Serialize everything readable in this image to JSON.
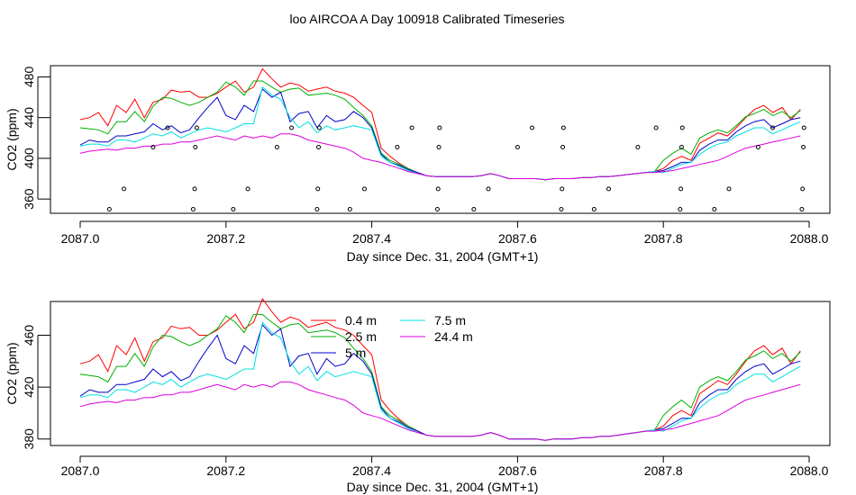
{
  "page_title": "loo AIRCOA A  Day 100918  Calibrated Timeseries",
  "chart_data": [
    {
      "type": "line",
      "panel": "top",
      "xlabel": "Day since Dec. 31, 2004 (GMT+1)",
      "ylabel": "CO2 (ppm)",
      "xlim": [
        2087.0,
        2088.0
      ],
      "ylim": [
        346,
        491
      ],
      "xticks": [
        "2087.0",
        "2087.2",
        "2087.4",
        "2087.6",
        "2087.8",
        "2088.0"
      ],
      "yticks": [
        "360",
        "400",
        "440",
        "480"
      ],
      "x": [
        2087.0,
        2087.013,
        2087.025,
        2087.038,
        2087.05,
        2087.063,
        2087.075,
        2087.088,
        2087.1,
        2087.113,
        2087.125,
        2087.138,
        2087.15,
        2087.163,
        2087.175,
        2087.188,
        2087.2,
        2087.213,
        2087.225,
        2087.238,
        2087.25,
        2087.263,
        2087.275,
        2087.288,
        2087.3,
        2087.313,
        2087.325,
        2087.338,
        2087.35,
        2087.363,
        2087.375,
        2087.388,
        2087.4,
        2087.413,
        2087.425,
        2087.438,
        2087.45,
        2087.463,
        2087.475,
        2087.488,
        2087.5,
        2087.513,
        2087.525,
        2087.538,
        2087.55,
        2087.563,
        2087.575,
        2087.588,
        2087.6,
        2087.613,
        2087.625,
        2087.638,
        2087.65,
        2087.663,
        2087.675,
        2087.688,
        2087.7,
        2087.713,
        2087.725,
        2087.738,
        2087.75,
        2087.763,
        2087.775,
        2087.788,
        2087.8,
        2087.813,
        2087.825,
        2087.838,
        2087.85,
        2087.863,
        2087.875,
        2087.888,
        2087.9,
        2087.913,
        2087.925,
        2087.938,
        2087.95,
        2087.963,
        2087.975,
        2087.988
      ],
      "series": [
        {
          "name": "0.4 m",
          "color": "#ff0000",
          "values": [
            438,
            440,
            445,
            432,
            452,
            445,
            458,
            440,
            455,
            458,
            467,
            465,
            466,
            460,
            460,
            464,
            470,
            476,
            465,
            470,
            488,
            478,
            470,
            474,
            472,
            466,
            468,
            470,
            466,
            464,
            460,
            452,
            445,
            410,
            402,
            395,
            390,
            386,
            383,
            382,
            382,
            382,
            382,
            382,
            383,
            385,
            383,
            380,
            380,
            380,
            380,
            379,
            380,
            380,
            380,
            381,
            381,
            382,
            382,
            383,
            384,
            385,
            386,
            387,
            390,
            398,
            402,
            398,
            415,
            420,
            425,
            422,
            430,
            440,
            448,
            452,
            445,
            450,
            438,
            448
          ]
        },
        {
          "name": "2.5 m",
          "color": "#00b000",
          "values": [
            430,
            429,
            428,
            424,
            436,
            436,
            446,
            436,
            451,
            460,
            459,
            455,
            452,
            455,
            460,
            465,
            475,
            470,
            462,
            476,
            476,
            470,
            465,
            468,
            469,
            462,
            463,
            464,
            462,
            458,
            450,
            442,
            432,
            405,
            398,
            394,
            390,
            386,
            383,
            382,
            382,
            382,
            382,
            382,
            383,
            385,
            383,
            380,
            380,
            380,
            380,
            379,
            380,
            380,
            380,
            381,
            381,
            382,
            382,
            383,
            384,
            385,
            386,
            387,
            398,
            405,
            410,
            404,
            420,
            425,
            428,
            425,
            432,
            441,
            444,
            448,
            442,
            446,
            440,
            447
          ]
        },
        {
          "name": "5 m",
          "color": "#0000cc",
          "values": [
            413,
            418,
            416,
            416,
            422,
            422,
            424,
            426,
            434,
            428,
            432,
            425,
            428,
            440,
            450,
            460,
            442,
            438,
            452,
            446,
            468,
            460,
            465,
            436,
            444,
            446,
            430,
            442,
            436,
            438,
            446,
            440,
            430,
            404,
            396,
            393,
            389,
            386,
            383,
            382,
            382,
            382,
            382,
            382,
            383,
            385,
            383,
            380,
            380,
            380,
            380,
            379,
            380,
            380,
            380,
            381,
            381,
            382,
            382,
            383,
            384,
            385,
            386,
            387,
            388,
            392,
            396,
            396,
            408,
            414,
            418,
            418,
            426,
            432,
            436,
            438,
            430,
            434,
            438,
            440
          ]
        },
        {
          "name": "7.5 m",
          "color": "#00e0e0",
          "values": [
            412,
            414,
            414,
            412,
            418,
            418,
            416,
            420,
            424,
            422,
            426,
            420,
            424,
            428,
            430,
            428,
            426,
            430,
            434,
            434,
            470,
            462,
            458,
            440,
            430,
            436,
            425,
            432,
            428,
            430,
            432,
            430,
            428,
            402,
            396,
            392,
            388,
            385,
            383,
            382,
            382,
            382,
            382,
            382,
            383,
            385,
            383,
            380,
            380,
            380,
            380,
            379,
            380,
            380,
            380,
            381,
            381,
            382,
            382,
            383,
            384,
            385,
            386,
            387,
            386,
            390,
            394,
            396,
            404,
            410,
            414,
            416,
            422,
            426,
            430,
            430,
            424,
            428,
            432,
            436
          ]
        },
        {
          "name": "24.4 m",
          "color": "#dd00dd",
          "values": [
            405,
            407,
            408,
            409,
            408,
            410,
            410,
            412,
            412,
            414,
            414,
            416,
            416,
            418,
            420,
            422,
            420,
            418,
            422,
            420,
            422,
            420,
            424,
            424,
            422,
            418,
            416,
            414,
            412,
            410,
            406,
            400,
            398,
            396,
            393,
            390,
            387,
            385,
            383,
            382,
            382,
            382,
            382,
            382,
            383,
            385,
            383,
            380,
            380,
            380,
            380,
            379,
            380,
            380,
            380,
            381,
            381,
            382,
            382,
            383,
            384,
            385,
            386,
            386,
            387,
            388,
            390,
            392,
            394,
            396,
            398,
            402,
            406,
            410,
            412,
            414,
            416,
            418,
            420,
            422
          ]
        }
      ],
      "points": [
        {
          "x": 2087.04,
          "y": 350
        },
        {
          "x": 2087.06,
          "y": 370
        },
        {
          "x": 2087.1,
          "y": 411
        },
        {
          "x": 2087.12,
          "y": 430
        },
        {
          "x": 2087.155,
          "y": 350
        },
        {
          "x": 2087.157,
          "y": 370
        },
        {
          "x": 2087.158,
          "y": 411
        },
        {
          "x": 2087.16,
          "y": 430
        },
        {
          "x": 2087.21,
          "y": 350
        },
        {
          "x": 2087.23,
          "y": 370
        },
        {
          "x": 2087.27,
          "y": 411
        },
        {
          "x": 2087.29,
          "y": 430
        },
        {
          "x": 2087.325,
          "y": 350
        },
        {
          "x": 2087.326,
          "y": 370
        },
        {
          "x": 2087.327,
          "y": 411
        },
        {
          "x": 2087.328,
          "y": 430
        },
        {
          "x": 2087.37,
          "y": 350
        },
        {
          "x": 2087.39,
          "y": 370
        },
        {
          "x": 2087.435,
          "y": 411
        },
        {
          "x": 2087.455,
          "y": 430
        },
        {
          "x": 2087.49,
          "y": 350
        },
        {
          "x": 2087.491,
          "y": 370
        },
        {
          "x": 2087.492,
          "y": 411
        },
        {
          "x": 2087.493,
          "y": 430
        },
        {
          "x": 2087.54,
          "y": 350
        },
        {
          "x": 2087.56,
          "y": 370
        },
        {
          "x": 2087.6,
          "y": 411
        },
        {
          "x": 2087.62,
          "y": 430
        },
        {
          "x": 2087.66,
          "y": 350
        },
        {
          "x": 2087.661,
          "y": 370
        },
        {
          "x": 2087.662,
          "y": 411
        },
        {
          "x": 2087.663,
          "y": 430
        },
        {
          "x": 2087.705,
          "y": 350
        },
        {
          "x": 2087.725,
          "y": 370
        },
        {
          "x": 2087.765,
          "y": 411
        },
        {
          "x": 2087.79,
          "y": 430
        },
        {
          "x": 2087.823,
          "y": 350
        },
        {
          "x": 2087.824,
          "y": 370
        },
        {
          "x": 2087.825,
          "y": 411
        },
        {
          "x": 2087.826,
          "y": 430
        },
        {
          "x": 2087.87,
          "y": 350
        },
        {
          "x": 2087.89,
          "y": 370
        },
        {
          "x": 2087.93,
          "y": 411
        },
        {
          "x": 2087.95,
          "y": 430
        },
        {
          "x": 2087.99,
          "y": 350
        },
        {
          "x": 2087.991,
          "y": 370
        },
        {
          "x": 2087.992,
          "y": 411
        },
        {
          "x": 2087.993,
          "y": 430
        }
      ]
    },
    {
      "type": "line",
      "panel": "bottom",
      "xlabel": "Day since Dec. 31, 2004 (GMT+1)",
      "ylabel": "CO2 (ppm)",
      "xlim": [
        2087.0,
        2088.0
      ],
      "ylim": [
        375,
        486
      ],
      "xticks": [
        "2087.0",
        "2087.2",
        "2087.4",
        "2087.6",
        "2087.8",
        "2088.0"
      ],
      "yticks": [
        "380",
        "420",
        "460"
      ],
      "legend": {
        "col1": [
          "0.4 m",
          "2.5 m",
          "5 m"
        ],
        "col2": [
          "7.5 m",
          "24.4 m"
        ]
      }
    }
  ]
}
